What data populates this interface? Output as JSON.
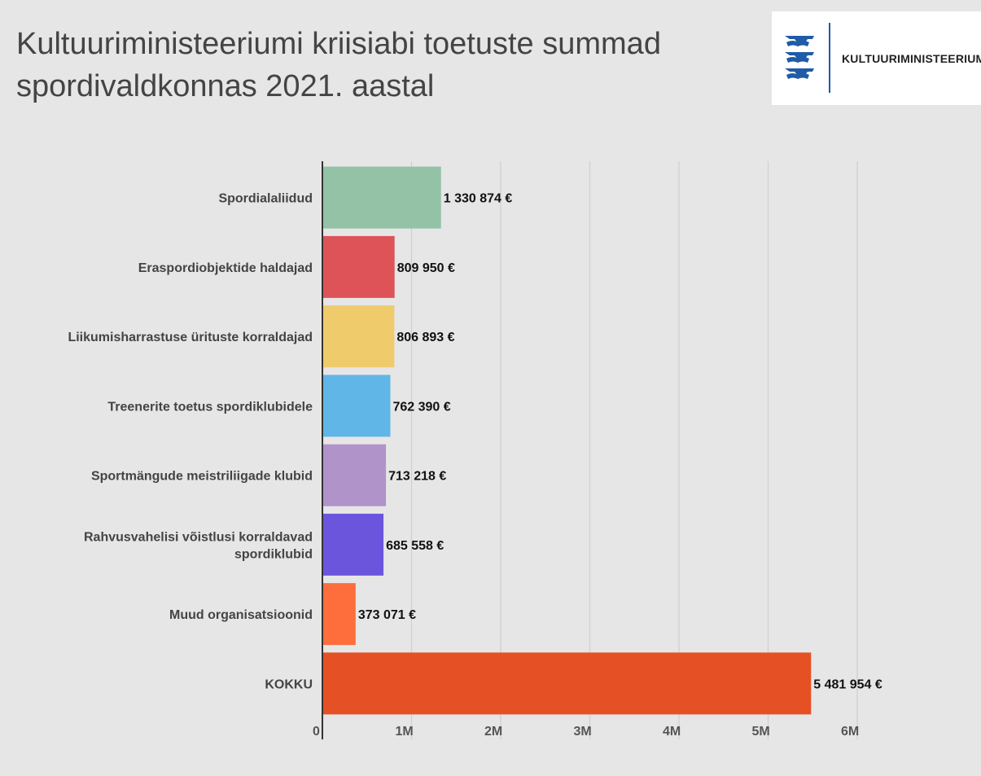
{
  "title": "Kultuuriministeeriumi kriisiabi toetuste summad spordivaldkonnas 2021. aastal",
  "logo": {
    "text": "Kultuuriministeerium",
    "icon": "estonian-coat-of-arms-icon",
    "accent": "#1f5ba8"
  },
  "chart_data": {
    "type": "bar",
    "orientation": "horizontal",
    "title": "Kultuuriministeeriumi kriisiabi toetuste summad spordivaldkonnas 2021. aastal",
    "xlabel": "",
    "ylabel": "",
    "xlim": [
      0,
      6000000
    ],
    "grid": true,
    "categories": [
      "Spordialaliidud",
      "Eraspordiobjektide haldajad",
      "Liikumisharrastuse ürituste korraldajad",
      "Treenerite toetus spordiklubidele",
      "Sportmängude meistriliigade klubid",
      "Rahvusvahelisi võistlusi korraldavad spordiklubid",
      "Muud organisatsioonid",
      "KOKKU"
    ],
    "label_lines": [
      [
        "Spordialaliidud"
      ],
      [
        "Eraspordiobjektide haldajad"
      ],
      [
        "Liikumisharrastuse ürituste korraldajad"
      ],
      [
        "Treenerite toetus spordiklubidele"
      ],
      [
        "Sportmängude meistriliigade klubid"
      ],
      [
        "Rahvusvahelisi võistlusi korraldavad",
        "spordiklubid"
      ],
      [
        "Muud organisatsioonid"
      ],
      [
        "KOKKU"
      ]
    ],
    "values": [
      1330874,
      809950,
      806893,
      762390,
      713218,
      685558,
      373071,
      5481954
    ],
    "value_labels": [
      "1 330 874 €",
      "809 950 €",
      "806 893 €",
      "762 390 €",
      "713 218 €",
      "685 558 €",
      "373 071 €",
      "5 481 954 €"
    ],
    "colors": [
      "#93c2a7",
      "#dd5357",
      "#f0cb6b",
      "#60b6e6",
      "#b093c9",
      "#6c55dd",
      "#fd6e3c",
      "#e65025"
    ],
    "ticks": [
      0,
      1000000,
      2000000,
      3000000,
      4000000,
      5000000,
      6000000
    ],
    "tick_labels": [
      "0",
      "1M",
      "2M",
      "3M",
      "4M",
      "5M",
      "6M"
    ]
  }
}
